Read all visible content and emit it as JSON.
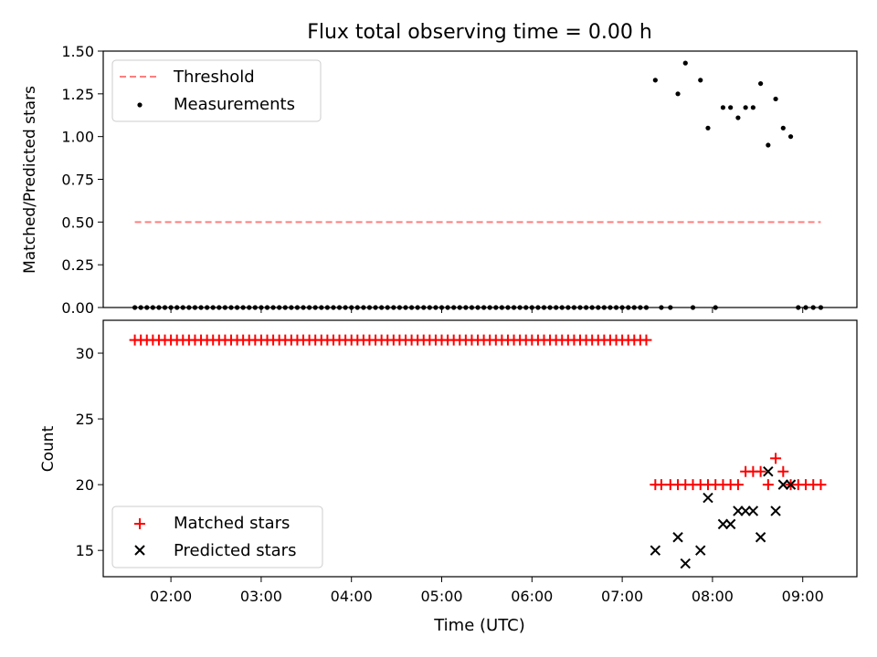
{
  "title": "Flux total observing time = 0.00 h",
  "xlabel": "Time (UTC)",
  "x_ticks": [
    "02:00",
    "03:00",
    "04:00",
    "05:00",
    "06:00",
    "07:00",
    "08:00",
    "09:00"
  ],
  "chart_data": [
    {
      "type": "scatter",
      "ylabel": "Matched/Predicted stars",
      "ylim": [
        0,
        1.5
      ],
      "xlim": [
        "01:15",
        "09:36"
      ],
      "y_ticks": [
        "0.00",
        "0.25",
        "0.50",
        "0.75",
        "1.00",
        "1.25",
        "1.50"
      ],
      "legend": {
        "placement": "upper-left",
        "entries": [
          {
            "label": "Threshold",
            "color": "#ff7f7f",
            "style": "dashed-line"
          },
          {
            "label": "Measurements",
            "color": "#000000",
            "style": "dot"
          }
        ]
      },
      "threshold": {
        "value": 0.5,
        "x_start": "01:36",
        "x_end": "09:12",
        "color": "#ff7f7f"
      },
      "series": [
        {
          "name": "Measurements",
          "color": "#000000",
          "points": [
            [
              "01:36",
              0
            ],
            [
              "01:40",
              0
            ],
            [
              "01:44",
              0
            ],
            [
              "01:48",
              0
            ],
            [
              "01:52",
              0
            ],
            [
              "01:56",
              0
            ],
            [
              "02:00",
              0
            ],
            [
              "02:04",
              0
            ],
            [
              "02:08",
              0
            ],
            [
              "02:12",
              0
            ],
            [
              "02:16",
              0
            ],
            [
              "02:20",
              0
            ],
            [
              "02:24",
              0
            ],
            [
              "02:28",
              0
            ],
            [
              "02:32",
              0
            ],
            [
              "02:36",
              0
            ],
            [
              "02:40",
              0
            ],
            [
              "02:44",
              0
            ],
            [
              "02:48",
              0
            ],
            [
              "02:52",
              0
            ],
            [
              "02:56",
              0
            ],
            [
              "03:00",
              0
            ],
            [
              "03:04",
              0
            ],
            [
              "03:08",
              0
            ],
            [
              "03:12",
              0
            ],
            [
              "03:16",
              0
            ],
            [
              "03:20",
              0
            ],
            [
              "03:24",
              0
            ],
            [
              "03:28",
              0
            ],
            [
              "03:32",
              0
            ],
            [
              "03:36",
              0
            ],
            [
              "03:40",
              0
            ],
            [
              "03:44",
              0
            ],
            [
              "03:48",
              0
            ],
            [
              "03:52",
              0
            ],
            [
              "03:56",
              0
            ],
            [
              "04:00",
              0
            ],
            [
              "04:04",
              0
            ],
            [
              "04:08",
              0
            ],
            [
              "04:12",
              0
            ],
            [
              "04:16",
              0
            ],
            [
              "04:20",
              0
            ],
            [
              "04:24",
              0
            ],
            [
              "04:28",
              0
            ],
            [
              "04:32",
              0
            ],
            [
              "04:36",
              0
            ],
            [
              "04:40",
              0
            ],
            [
              "04:44",
              0
            ],
            [
              "04:48",
              0
            ],
            [
              "04:52",
              0
            ],
            [
              "04:56",
              0
            ],
            [
              "05:00",
              0
            ],
            [
              "05:04",
              0
            ],
            [
              "05:08",
              0
            ],
            [
              "05:12",
              0
            ],
            [
              "05:16",
              0
            ],
            [
              "05:20",
              0
            ],
            [
              "05:24",
              0
            ],
            [
              "05:28",
              0
            ],
            [
              "05:32",
              0
            ],
            [
              "05:36",
              0
            ],
            [
              "05:40",
              0
            ],
            [
              "05:44",
              0
            ],
            [
              "05:48",
              0
            ],
            [
              "05:52",
              0
            ],
            [
              "05:56",
              0
            ],
            [
              "06:00",
              0
            ],
            [
              "06:04",
              0
            ],
            [
              "06:08",
              0
            ],
            [
              "06:12",
              0
            ],
            [
              "06:16",
              0
            ],
            [
              "06:20",
              0
            ],
            [
              "06:24",
              0
            ],
            [
              "06:28",
              0
            ],
            [
              "06:32",
              0
            ],
            [
              "06:36",
              0
            ],
            [
              "06:40",
              0
            ],
            [
              "06:44",
              0
            ],
            [
              "06:48",
              0
            ],
            [
              "06:52",
              0
            ],
            [
              "06:56",
              0
            ],
            [
              "07:00",
              0
            ],
            [
              "07:04",
              0
            ],
            [
              "07:08",
              0
            ],
            [
              "07:12",
              0
            ],
            [
              "07:16",
              0
            ],
            [
              "07:22",
              1.33
            ],
            [
              "07:26",
              0
            ],
            [
              "07:32",
              0
            ],
            [
              "07:37",
              1.25
            ],
            [
              "07:42",
              1.43
            ],
            [
              "07:47",
              0
            ],
            [
              "07:52",
              1.33
            ],
            [
              "07:57",
              1.05
            ],
            [
              "08:02",
              0
            ],
            [
              "08:07",
              1.17
            ],
            [
              "08:12",
              1.17
            ],
            [
              "08:17",
              1.11
            ],
            [
              "08:22",
              1.17
            ],
            [
              "08:27",
              1.17
            ],
            [
              "08:32",
              1.31
            ],
            [
              "08:37",
              0.95
            ],
            [
              "08:42",
              1.22
            ],
            [
              "08:47",
              1.05
            ],
            [
              "08:52",
              1.0
            ],
            [
              "08:57",
              0
            ],
            [
              "09:02",
              0
            ],
            [
              "09:07",
              0
            ],
            [
              "09:12",
              0
            ]
          ]
        }
      ]
    },
    {
      "type": "scatter",
      "ylabel": "Count",
      "ylim": [
        13.0,
        32.5
      ],
      "xlim": [
        "01:15",
        "09:36"
      ],
      "y_ticks": [
        "15",
        "20",
        "25",
        "30"
      ],
      "legend": {
        "placement": "lower-left",
        "entries": [
          {
            "label": "Matched stars",
            "color": "#ff0000",
            "style": "plus"
          },
          {
            "label": "Predicted stars",
            "color": "#000000",
            "style": "x"
          }
        ]
      },
      "series": [
        {
          "name": "Matched stars",
          "color": "#ff0000",
          "points": [
            [
              "01:36",
              31
            ],
            [
              "01:40",
              31
            ],
            [
              "01:44",
              31
            ],
            [
              "01:48",
              31
            ],
            [
              "01:52",
              31
            ],
            [
              "01:56",
              31
            ],
            [
              "02:00",
              31
            ],
            [
              "02:04",
              31
            ],
            [
              "02:08",
              31
            ],
            [
              "02:12",
              31
            ],
            [
              "02:16",
              31
            ],
            [
              "02:20",
              31
            ],
            [
              "02:24",
              31
            ],
            [
              "02:28",
              31
            ],
            [
              "02:32",
              31
            ],
            [
              "02:36",
              31
            ],
            [
              "02:40",
              31
            ],
            [
              "02:44",
              31
            ],
            [
              "02:48",
              31
            ],
            [
              "02:52",
              31
            ],
            [
              "02:56",
              31
            ],
            [
              "03:00",
              31
            ],
            [
              "03:04",
              31
            ],
            [
              "03:08",
              31
            ],
            [
              "03:12",
              31
            ],
            [
              "03:16",
              31
            ],
            [
              "03:20",
              31
            ],
            [
              "03:24",
              31
            ],
            [
              "03:28",
              31
            ],
            [
              "03:32",
              31
            ],
            [
              "03:36",
              31
            ],
            [
              "03:40",
              31
            ],
            [
              "03:44",
              31
            ],
            [
              "03:48",
              31
            ],
            [
              "03:52",
              31
            ],
            [
              "03:56",
              31
            ],
            [
              "04:00",
              31
            ],
            [
              "04:04",
              31
            ],
            [
              "04:08",
              31
            ],
            [
              "04:12",
              31
            ],
            [
              "04:16",
              31
            ],
            [
              "04:20",
              31
            ],
            [
              "04:24",
              31
            ],
            [
              "04:28",
              31
            ],
            [
              "04:32",
              31
            ],
            [
              "04:36",
              31
            ],
            [
              "04:40",
              31
            ],
            [
              "04:44",
              31
            ],
            [
              "04:48",
              31
            ],
            [
              "04:52",
              31
            ],
            [
              "04:56",
              31
            ],
            [
              "05:00",
              31
            ],
            [
              "05:04",
              31
            ],
            [
              "05:08",
              31
            ],
            [
              "05:12",
              31
            ],
            [
              "05:16",
              31
            ],
            [
              "05:20",
              31
            ],
            [
              "05:24",
              31
            ],
            [
              "05:28",
              31
            ],
            [
              "05:32",
              31
            ],
            [
              "05:36",
              31
            ],
            [
              "05:40",
              31
            ],
            [
              "05:44",
              31
            ],
            [
              "05:48",
              31
            ],
            [
              "05:52",
              31
            ],
            [
              "05:56",
              31
            ],
            [
              "06:00",
              31
            ],
            [
              "06:04",
              31
            ],
            [
              "06:08",
              31
            ],
            [
              "06:12",
              31
            ],
            [
              "06:16",
              31
            ],
            [
              "06:20",
              31
            ],
            [
              "06:24",
              31
            ],
            [
              "06:28",
              31
            ],
            [
              "06:32",
              31
            ],
            [
              "06:36",
              31
            ],
            [
              "06:40",
              31
            ],
            [
              "06:44",
              31
            ],
            [
              "06:48",
              31
            ],
            [
              "06:52",
              31
            ],
            [
              "06:56",
              31
            ],
            [
              "07:00",
              31
            ],
            [
              "07:04",
              31
            ],
            [
              "07:08",
              31
            ],
            [
              "07:12",
              31
            ],
            [
              "07:16",
              31
            ],
            [
              "07:22",
              20
            ],
            [
              "07:26",
              20
            ],
            [
              "07:32",
              20
            ],
            [
              "07:37",
              20
            ],
            [
              "07:42",
              20
            ],
            [
              "07:47",
              20
            ],
            [
              "07:52",
              20
            ],
            [
              "07:57",
              20
            ],
            [
              "08:02",
              20
            ],
            [
              "08:07",
              20
            ],
            [
              "08:12",
              20
            ],
            [
              "08:17",
              20
            ],
            [
              "08:22",
              21
            ],
            [
              "08:27",
              21
            ],
            [
              "08:32",
              21
            ],
            [
              "08:37",
              20
            ],
            [
              "08:42",
              22
            ],
            [
              "08:47",
              21
            ],
            [
              "08:52",
              20
            ],
            [
              "08:57",
              20
            ],
            [
              "09:02",
              20
            ],
            [
              "09:07",
              20
            ],
            [
              "09:12",
              20
            ]
          ]
        },
        {
          "name": "Predicted stars",
          "color": "#000000",
          "points": [
            [
              "07:22",
              15
            ],
            [
              "07:37",
              16
            ],
            [
              "07:42",
              14
            ],
            [
              "07:52",
              15
            ],
            [
              "07:57",
              19
            ],
            [
              "08:07",
              17
            ],
            [
              "08:12",
              17
            ],
            [
              "08:17",
              18
            ],
            [
              "08:22",
              18
            ],
            [
              "08:27",
              18
            ],
            [
              "08:32",
              16
            ],
            [
              "08:37",
              21
            ],
            [
              "08:42",
              18
            ],
            [
              "08:47",
              20
            ],
            [
              "08:52",
              20
            ]
          ]
        }
      ]
    }
  ]
}
